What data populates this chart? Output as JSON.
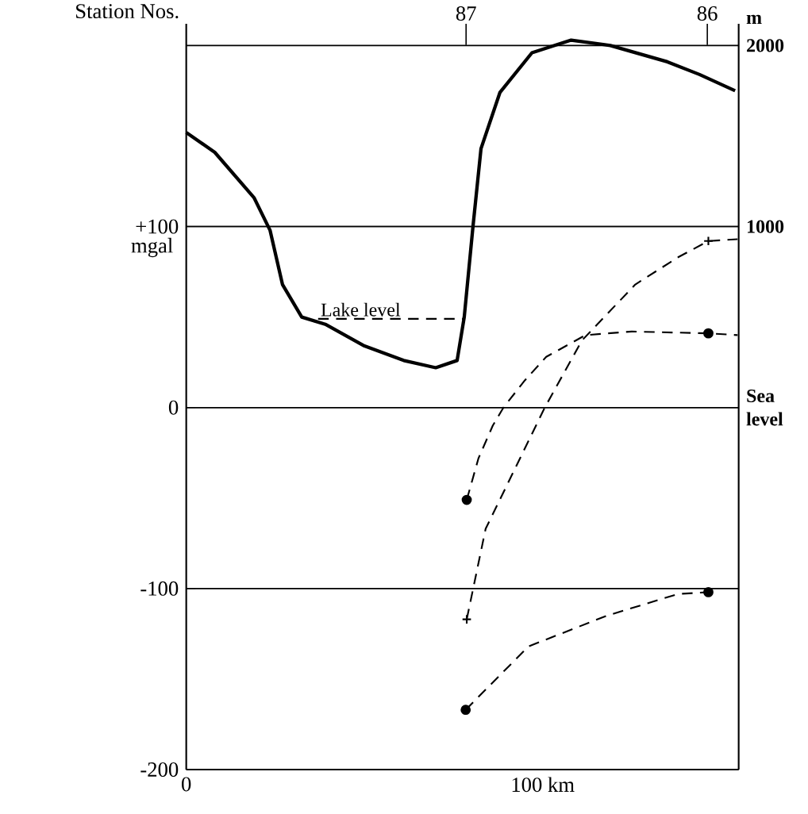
{
  "chart_data": {
    "type": "line",
    "ylabel": "mgal",
    "y2label": "m",
    "x2label": "Station Nos.",
    "xlim": [
      0,
      155
    ],
    "xticks": [
      0,
      {
        "value": 100,
        "label": "100 km"
      }
    ],
    "ylim": [
      -200,
      212
    ],
    "yticks": [
      -200,
      -100,
      0,
      {
        "value": 100,
        "label": "+100"
      }
    ],
    "y2lim": [
      -2000,
      2120
    ],
    "y2ticks": [
      {
        "value": 0,
        "label": "Sea level"
      },
      1000,
      2000
    ],
    "grid": "y",
    "x2lim": [
      88.16,
      85.87
    ],
    "x2ticks": [
      87,
      86
    ],
    "series": [
      {
        "axis": "y2",
        "color": "#000000",
        "line_style": "solid",
        "marker": "none",
        "x": [
          0,
          8,
          19,
          23.5,
          27,
          32.4,
          39,
          50,
          61,
          70,
          76,
          78,
          80.4,
          82.7,
          88,
          97,
          108,
          119,
          135,
          144,
          154
        ],
        "values": [
          1520,
          1410,
          1160,
          980,
          680,
          500,
          460,
          340,
          260,
          220,
          260,
          500,
          990,
          1430,
          1740,
          1960,
          2030,
          2000,
          1910,
          1840,
          1750
        ]
      },
      {
        "axis": "y2",
        "name": "Lake level",
        "color": "#000000",
        "line_style": "dashed",
        "marker": "none",
        "x": [
          37,
          78
        ],
        "values": [
          490,
          490
        ]
      },
      {
        "axis": "y",
        "color": "#000000",
        "line_style": "dashed",
        "marker": "none",
        "x": [
          78.7,
          82,
          86,
          89,
          95,
          101,
          112,
          125,
          146.5,
          154.7
        ],
        "values": [
          -51,
          -28,
          -10,
          0,
          15,
          28,
          40,
          42,
          41,
          40
        ]
      },
      {
        "axis": "y",
        "color": "#000000",
        "line_style": "dashed",
        "marker": "none",
        "x": [
          78.7,
          84,
          100.6,
          111,
          126,
          138,
          146.5,
          154.7
        ],
        "values": [
          -117,
          -67,
          0,
          37,
          68,
          83,
          92,
          93
        ]
      },
      {
        "axis": "y",
        "color": "#000000",
        "line_style": "dashed",
        "marker": "none",
        "x": [
          78.4,
          96,
          118,
          138,
          146.5
        ],
        "values": [
          -167,
          -132,
          -115,
          -103,
          -102
        ]
      },
      {
        "type": "scatter",
        "axis": "y",
        "color": "#000000",
        "marker": "circle",
        "x": [
          78.7,
          146.5,
          78.4,
          146.5
        ],
        "values": [
          -51,
          41,
          -167,
          -102
        ]
      },
      {
        "type": "scatter",
        "axis": "y",
        "color": "#000000",
        "marker": "cross",
        "x": [
          78.7,
          146.5
        ],
        "values": [
          -117,
          92
        ]
      }
    ]
  }
}
